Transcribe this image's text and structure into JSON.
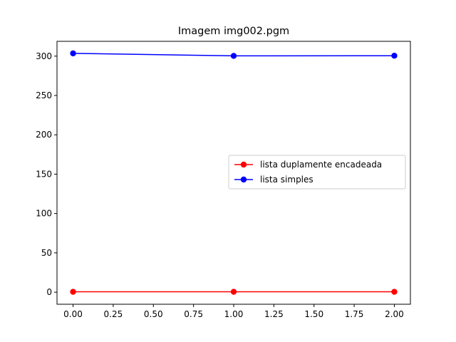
{
  "chart_data": {
    "type": "line",
    "title": "Imagem img002.pgm",
    "xlabel": "",
    "ylabel": "",
    "x": [
      0,
      1,
      2
    ],
    "xlim": [
      -0.1,
      2.1
    ],
    "ylim": [
      -15.3,
      318.8
    ],
    "xticks": [
      0,
      0.25,
      0.5,
      0.75,
      1.0,
      1.25,
      1.5,
      1.75,
      2.0
    ],
    "xtick_labels": [
      "0.00",
      "0.25",
      "0.50",
      "0.75",
      "1.00",
      "1.25",
      "1.50",
      "1.75",
      "2.00"
    ],
    "yticks": [
      0,
      50,
      100,
      150,
      200,
      250,
      300
    ],
    "ytick_labels": [
      "0",
      "50",
      "100",
      "150",
      "200",
      "250",
      "300"
    ],
    "grid": false,
    "legend_position": "center-right",
    "series": [
      {
        "name": "lista duplamente encadeada",
        "color": "#ff0000",
        "values": [
          0.5,
          0.5,
          0.5
        ]
      },
      {
        "name": "lista simples",
        "color": "#0000ff",
        "values": [
          303.5,
          300.3,
          300.5
        ]
      }
    ]
  }
}
